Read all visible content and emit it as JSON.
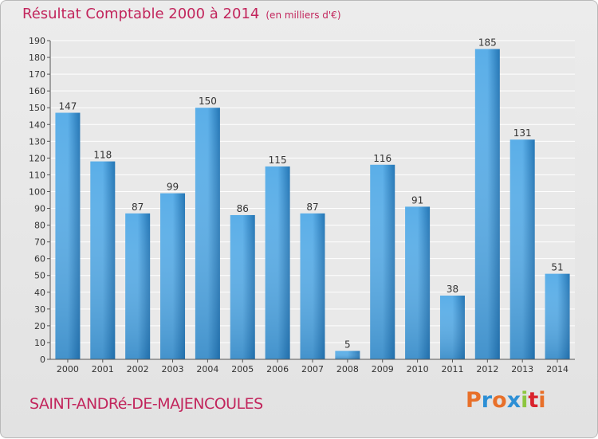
{
  "header": {
    "title": "Résultat Comptable 2000 à 2014",
    "unit": "(en milliers d'€)"
  },
  "footer": {
    "commune": "SAINT-ANDRé-DE-MAJENCOULES",
    "logo": "Proxiti"
  },
  "colors": {
    "title": "#c2255c",
    "bar_light": "#5aaee8",
    "bar_dark": "#2476b5",
    "logo": [
      "#e8702a",
      "#2d8fd5",
      "#e8702a",
      "#2d8fd5",
      "#8cc63f",
      "#d9232d",
      "#e8702a"
    ]
  },
  "chart_data": {
    "type": "bar",
    "title": "Résultat Comptable 2000 à 2014",
    "ylabel": "",
    "xlabel": "",
    "categories": [
      "2000",
      "2001",
      "2002",
      "2003",
      "2004",
      "2005",
      "2006",
      "2007",
      "2008",
      "2009",
      "2010",
      "2011",
      "2012",
      "2013",
      "2014"
    ],
    "values": [
      147,
      118,
      87,
      99,
      150,
      86,
      115,
      87,
      5,
      116,
      91,
      38,
      185,
      131,
      51
    ],
    "ylim": [
      0,
      190
    ],
    "ytick_step": 10,
    "grid": true
  }
}
